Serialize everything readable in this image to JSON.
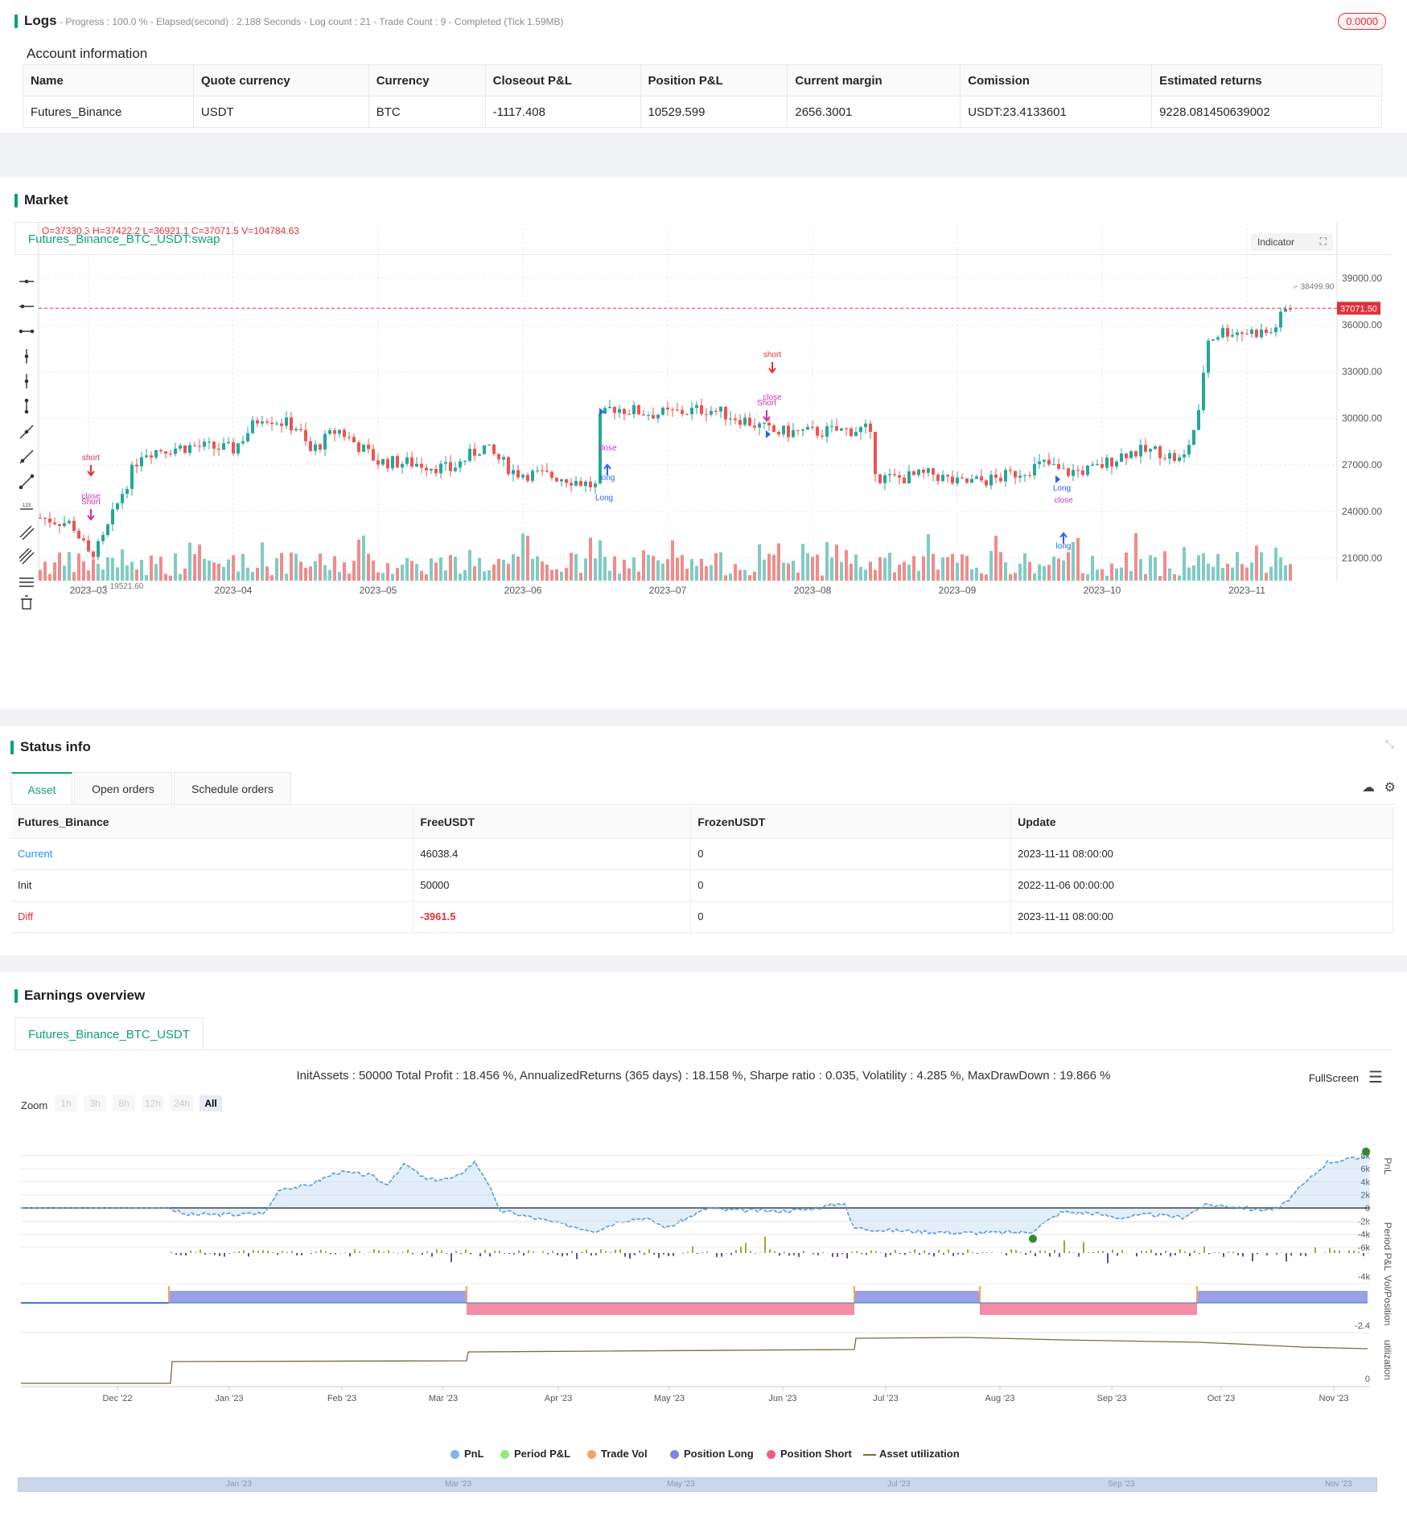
{
  "logs": {
    "title": "Logs",
    "progress": "- Progress : 100.0 % - Elapsed(second) : 2.188  Seconds - Log count : 21 - Trade Count : 9 - Completed (Tick 1.59MB)",
    "badge": "0.0000"
  },
  "account": {
    "title": "Account information",
    "headers": [
      "Name",
      "Quote currency",
      "Currency",
      "Closeout P&L",
      "Position P&L",
      "Current margin",
      "Comission",
      "Estimated returns"
    ],
    "row": [
      "Futures_Binance",
      "USDT",
      "BTC",
      "-1117.408",
      "10529.599",
      "2656.3001",
      "USDT:23.4133601",
      "9228.081450639002"
    ]
  },
  "market": {
    "title": "Market",
    "tab": "Futures_Binance_BTC_USDT:swap",
    "ohlc": "O=37330.3  H=37422.2  L=36921.1  C=37071.5  V=104784.63",
    "indicator_button": "Indicator",
    "current_price": "37071.50",
    "high_label": "38499.90",
    "low_label": "19521.60",
    "price_ticks": [
      "39000.00",
      "36000.00",
      "33000.00",
      "30000.00",
      "27000.00",
      "24000.00",
      "21000.00"
    ],
    "date_ticks": [
      "2023–03",
      "2023–04",
      "2023–05",
      "2023–06",
      "2023–07",
      "2023–08",
      "2023–09",
      "2023–10",
      "2023–11"
    ],
    "colors": {
      "up": "#26a69a",
      "down": "#ef5350",
      "vol_up": "#80cbc4",
      "vol_down": "#f28b8b"
    },
    "signals": [
      {
        "text": "short",
        "color": "#e0313b"
      },
      {
        "text": "Short",
        "color": "#cc3399"
      },
      {
        "text": "close",
        "color": "#cc33cc"
      },
      {
        "text": "long",
        "color": "#2962ff"
      },
      {
        "text": "Long",
        "color": "#2962ff"
      }
    ]
  },
  "status": {
    "title": "Status info",
    "tabs": [
      "Asset",
      "Open orders",
      "Schedule orders"
    ],
    "headers": [
      "Futures_Binance",
      "FreeUSDT",
      "FrozenUSDT",
      "Update"
    ],
    "rows": [
      [
        "Current",
        "46038.4",
        "0",
        "2023-11-11 08:00:00"
      ],
      [
        "Init",
        "50000",
        "0",
        "2022-11-06 00:00:00"
      ],
      [
        "Diff",
        "-3961.5",
        "0",
        "2023-11-11 08:00:00"
      ]
    ]
  },
  "earnings": {
    "title": "Earnings overview",
    "tab": "Futures_Binance_BTC_USDT",
    "summary": "InitAssets : 50000 Total Profit : 18.456 %, AnnualizedReturns (365 days) : 18.158 %, Sharpe ratio : 0.035, Volatility : 4.285 %, MaxDrawDown : 19.866 %",
    "fullscreen": "FullScreen",
    "zoom_label": "Zoom",
    "zoom_options": [
      "1h",
      "3h",
      "8h",
      "12h",
      "24h",
      "All"
    ],
    "pnl_ticks": [
      "8k",
      "6k",
      "4k",
      "2k",
      "0",
      "-2k",
      "-4k",
      "-6k"
    ],
    "period_tick": "-4k",
    "position_tick": "-2.4",
    "util_tick": "0",
    "axis_titles": [
      "PnL",
      "Period P&L",
      "Vol/Position",
      "utilization"
    ],
    "x_ticks": [
      "Dec '22",
      "Jan '23",
      "Feb '23",
      "Mar '23",
      "Apr '23",
      "May '23",
      "Jun '23",
      "Jul '23",
      "Aug '23",
      "Sep '23",
      "Oct '23",
      "Nov '23"
    ],
    "navigator_ticks": [
      "Jan '23",
      "Mar '23",
      "May '23",
      "Jul '23",
      "Sep '23",
      "Nov '23"
    ],
    "legend": [
      {
        "label": "PnL",
        "color": "#7cb5ec"
      },
      {
        "label": "Period P&L",
        "color": "#90ed7d"
      },
      {
        "label": "Trade Vol",
        "color": "#f7a35c"
      },
      {
        "label": "Position Long",
        "color": "#8085e9"
      },
      {
        "label": "Position Short",
        "color": "#f15c80"
      },
      {
        "label": "Asset utilization",
        "color": "#7a6a3a"
      }
    ]
  }
}
